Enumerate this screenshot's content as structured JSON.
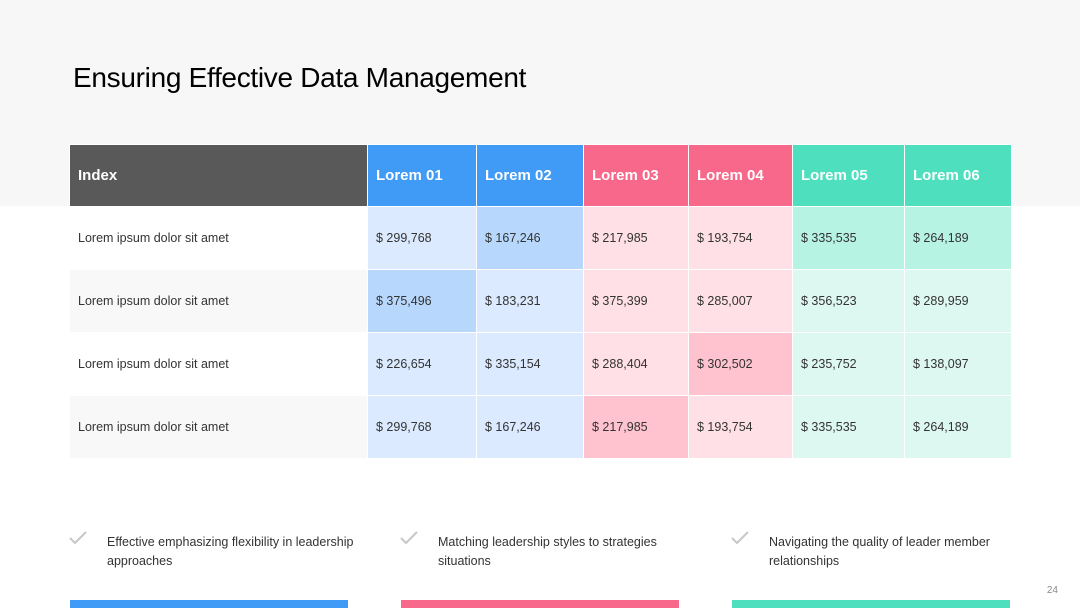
{
  "title": "Ensuring Effective Data Management",
  "colors": {
    "index_header": "#595959",
    "blue_header": "#3f9bf5",
    "pink_header": "#f7688a",
    "green_header": "#4ddfbe",
    "blue_light": "#dbeafe",
    "blue_strong": "#b7d8fc",
    "pink_light": "#ffe0e6",
    "pink_strong": "#ffc3cf",
    "green_light": "#ddf8f0",
    "green_strong": "#b6f3e3",
    "check": "#c7c7c7"
  },
  "table": {
    "headers": [
      "Index",
      "Lorem 01",
      "Lorem 02",
      "Lorem 03",
      "Lorem 04",
      "Lorem 05",
      "Lorem 06"
    ],
    "rows": [
      {
        "label": "Lorem ipsum dolor sit amet",
        "values": [
          "$ 299,768",
          "$ 167,246",
          "$ 217,985",
          "$ 193,754",
          "$ 335,535",
          "$ 264,189"
        ]
      },
      {
        "label": "Lorem ipsum dolor sit amet",
        "values": [
          "$ 375,496",
          "$ 183,231",
          "$ 375,399",
          "$ 285,007",
          "$ 356,523",
          "$ 289,959"
        ]
      },
      {
        "label": "Lorem ipsum dolor sit amet",
        "values": [
          "$ 226,654",
          "$ 335,154",
          "$ 288,404",
          "$ 302,502",
          "$ 235,752",
          "$ 138,097"
        ]
      },
      {
        "label": "Lorem ipsum dolor sit amet",
        "values": [
          "$ 299,768",
          "$ 167,246",
          "$ 217,985",
          "$ 193,754",
          "$ 335,535",
          "$ 264,189"
        ]
      }
    ]
  },
  "points": [
    {
      "icon": "check-icon",
      "text": "Effective emphasizing flexibility in leadership approaches",
      "color": "#3f9bf5"
    },
    {
      "icon": "check-icon",
      "text": "Matching leadership styles to  strategies situations",
      "color": "#f7688a"
    },
    {
      "icon": "check-icon",
      "text": "Navigating the quality of leader member relationships",
      "color": "#4ddfbe"
    }
  ],
  "page_number": "24"
}
